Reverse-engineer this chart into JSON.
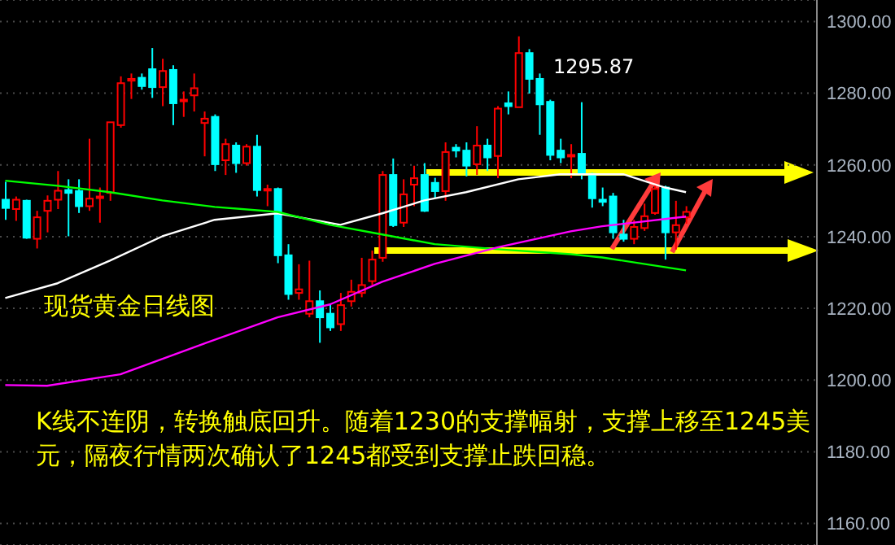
{
  "chart_data": {
    "type": "candlestick",
    "annotations": [
      "现货黄金日线图",
      "K线不连阴，转换触底回升。随着1230的支撑幅射，支撑上移至1245美元，隔夜行情两次确认了1245都受到支撑止跌回稳。",
      "1295.87"
    ],
    "categories": [
      null,
      null,
      null,
      null,
      null,
      null,
      null,
      null,
      null,
      null,
      null,
      null,
      null,
      null,
      null,
      null,
      null,
      null,
      null,
      null,
      null,
      null,
      null,
      null,
      null,
      null,
      null,
      null,
      null,
      null,
      null,
      null,
      null,
      null,
      null,
      null,
      null,
      null,
      null,
      null,
      null,
      null,
      null,
      null,
      null,
      null,
      null,
      null,
      null,
      null,
      null,
      null,
      null,
      null,
      null,
      null,
      null,
      null,
      null,
      null,
      null,
      null,
      null,
      null,
      null,
      null,
      null,
      null,
      null,
      null,
      null,
      null,
      null,
      null,
      null,
      null,
      null,
      null
    ],
    "ohlc": [
      [
        1250.3,
        1255.3,
        1244.7,
        1248.0
      ],
      [
        1247.7,
        1251.2,
        1244.4,
        1250.3
      ],
      [
        1250.0,
        1250.3,
        1239.4,
        1239.7
      ],
      [
        1239.4,
        1247.2,
        1236.7,
        1245.4
      ],
      [
        1247.2,
        1251.5,
        1241.2,
        1250.0
      ],
      [
        1250.3,
        1258.3,
        1247.7,
        1252.8
      ],
      [
        1253.0,
        1256.0,
        1240.1,
        1252.2
      ],
      [
        1252.7,
        1256.0,
        1246.6,
        1248.5
      ],
      [
        1248.5,
        1267.3,
        1247.2,
        1250.6
      ],
      [
        1251.1,
        1253.7,
        1243.9,
        1251.2
      ],
      [
        1252.2,
        1271.9,
        1250.0,
        1271.9
      ],
      [
        1271.1,
        1284.7,
        1270.4,
        1282.8
      ],
      [
        1283.5,
        1285.5,
        1278.4,
        1284.0
      ],
      [
        1284.3,
        1285.5,
        1281.0,
        1282.0
      ],
      [
        1286.7,
        1292.6,
        1278.7,
        1281.7
      ],
      [
        1281.7,
        1289.6,
        1276.4,
        1286.2
      ],
      [
        1286.5,
        1287.8,
        1271.1,
        1277.2
      ],
      [
        1277.8,
        1280.5,
        1273.4,
        1278.2
      ],
      [
        1279.4,
        1285.5,
        1274.9,
        1281.4
      ],
      [
        1271.7,
        1274.9,
        1262.4,
        1272.9
      ],
      [
        1273.4,
        1274.1,
        1258.3,
        1260.2
      ],
      [
        1261.3,
        1267.3,
        1257.2,
        1265.8
      ],
      [
        1265.4,
        1266.3,
        1257.8,
        1260.5
      ],
      [
        1260.5,
        1265.8,
        1259.8,
        1265.1
      ],
      [
        1265.1,
        1268.4,
        1251.2,
        1253.0
      ],
      [
        1253.0,
        1254.5,
        1248.5,
        1253.3
      ],
      [
        1253.3,
        1253.7,
        1232.6,
        1234.8
      ],
      [
        1234.8,
        1237.9,
        1222.4,
        1224.0
      ],
      [
        1224.3,
        1232.3,
        1222.4,
        1225.3
      ],
      [
        1218.5,
        1233.3,
        1217.5,
        1222.0
      ],
      [
        1222.0,
        1225.0,
        1210.4,
        1217.5
      ],
      [
        1218.5,
        1221.2,
        1213.7,
        1214.7
      ],
      [
        1215.6,
        1224.3,
        1213.7,
        1220.9
      ],
      [
        1222.0,
        1228.0,
        1220.5,
        1224.6
      ],
      [
        1224.3,
        1234.1,
        1223.1,
        1226.5
      ],
      [
        1227.6,
        1236.1,
        1226.5,
        1233.6
      ],
      [
        1234.1,
        1258.3,
        1233.0,
        1257.2
      ],
      [
        1257.2,
        1261.8,
        1242.7,
        1243.2
      ],
      [
        1243.9,
        1256.0,
        1242.7,
        1251.8
      ],
      [
        1254.5,
        1259.8,
        1248.5,
        1256.3
      ],
      [
        1257.2,
        1260.5,
        1246.9,
        1247.2
      ],
      [
        1255.0,
        1256.4,
        1250.7,
        1252.7
      ],
      [
        1252.7,
        1266.3,
        1250.0,
        1263.6
      ],
      [
        1264.8,
        1265.8,
        1262.1,
        1264.0
      ],
      [
        1264.0,
        1266.3,
        1256.8,
        1259.8
      ],
      [
        1260.2,
        1270.8,
        1257.2,
        1265.4
      ],
      [
        1265.4,
        1267.3,
        1258.3,
        1262.1
      ],
      [
        1262.5,
        1276.4,
        1256.3,
        1275.7
      ],
      [
        1277.2,
        1280.5,
        1274.1,
        1276.4
      ],
      [
        1276.1,
        1295.87,
        1276.1,
        1291.2
      ],
      [
        1291.2,
        1292.3,
        1279.9,
        1284.0
      ],
      [
        1284.0,
        1285.5,
        1268.4,
        1276.9
      ],
      [
        1277.6,
        1278.2,
        1261.3,
        1262.8
      ],
      [
        1264.0,
        1267.3,
        1260.5,
        1262.1
      ],
      [
        1262.4,
        1265.8,
        1256.3,
        1262.8
      ],
      [
        1263.1,
        1277.5,
        1256.0,
        1257.5
      ],
      [
        1257.5,
        1257.8,
        1248.1,
        1250.7
      ],
      [
        1250.3,
        1253.7,
        1248.5,
        1249.7
      ],
      [
        1251.2,
        1252.2,
        1239.4,
        1241.2
      ],
      [
        1240.6,
        1244.7,
        1238.6,
        1239.4
      ],
      [
        1239.4,
        1244.7,
        1237.9,
        1242.7
      ],
      [
        1242.4,
        1249.2,
        1241.6,
        1245.7
      ],
      [
        1246.6,
        1254.5,
        1246.1,
        1253.3
      ],
      [
        1253.7,
        1254.2,
        1233.6,
        1241.2
      ],
      [
        1241.2,
        1250.0,
        1236.4,
        1243.2
      ],
      [
        1245.4,
        1248.5,
        1243.6,
        1246.9
      ],
      null,
      null,
      null,
      null,
      null,
      null,
      null,
      null,
      null,
      null,
      null,
      null
    ],
    "colors": [
      "#00ffff",
      "#ff0000",
      "#00ffff",
      "#ff0000",
      "#ff0000",
      "#ff0000",
      "#00ffff",
      "#00ffff",
      "#ff0000",
      "#ff0000",
      "#ff0000",
      "#ff0000",
      "#ff0000",
      "#00ffff",
      "#00ffff",
      "#ff0000",
      "#00ffff",
      "#ff0000",
      "#ff0000",
      "#ff0000",
      "#00ffff",
      "#ff0000",
      "#00ffff",
      "#ff0000",
      "#00ffff",
      "#ff0000",
      "#00ffff",
      "#00ffff",
      "#ff0000",
      "#ff0000",
      "#00ffff",
      "#00ffff",
      "#ff0000",
      "#ff0000",
      "#ff0000",
      "#ff0000",
      "#ff0000",
      "#00ffff",
      "#ff0000",
      "#ff0000",
      "#00ffff",
      "#00ffff",
      "#ff0000",
      "#00ffff",
      "#00ffff",
      "#ff0000",
      "#00ffff",
      "#ff0000",
      "#00ffff",
      "#ff0000",
      "#00ffff",
      "#00ffff",
      "#00ffff",
      "#00ffff",
      "#ff0000",
      "#00ffff",
      "#00ffff",
      "#00ffff",
      "#00ffff",
      "#00ffff",
      "#ff0000",
      "#ff0000",
      "#ff0000",
      "#00ffff",
      "#ff0000",
      "#ff0000",
      null,
      null,
      null,
      null,
      null,
      null,
      null,
      null,
      null,
      null,
      null,
      null
    ],
    "series": [
      {
        "type": "line",
        "color": "#ffffff",
        "values": [
          1222.9,
          null,
          null,
          null,
          null,
          1227.0,
          null,
          null,
          null,
          null,
          1233.3,
          null,
          null,
          null,
          null,
          1240.1,
          null,
          null,
          null,
          null,
          1244.7,
          null,
          null,
          null,
          null,
          null,
          1246.5,
          null,
          null,
          null,
          null,
          null,
          1243.3,
          null,
          null,
          null,
          1246.5,
          null,
          null,
          null,
          1250.1,
          null,
          null,
          null,
          1252.4,
          null,
          null,
          null,
          null,
          1256.0,
          null,
          null,
          null,
          1257.4,
          null,
          null,
          null,
          null,
          null,
          1257.4,
          null,
          null,
          null,
          1253.7,
          null,
          1252.4,
          null,
          null,
          null,
          null,
          null,
          null,
          null,
          null,
          null,
          null,
          null,
          null
        ]
      },
      {
        "type": "line",
        "color": "#00ff00",
        "values": [
          1255.6,
          null,
          null,
          null,
          null,
          1254.2,
          null,
          null,
          null,
          null,
          1252.4,
          null,
          null,
          null,
          null,
          1250.1,
          null,
          null,
          null,
          null,
          1248.3,
          null,
          null,
          null,
          null,
          null,
          1246.9,
          null,
          null,
          null,
          null,
          1243.3,
          null,
          null,
          null,
          null,
          1240.6,
          null,
          null,
          null,
          null,
          1237.9,
          null,
          null,
          null,
          null,
          null,
          1236.5,
          null,
          null,
          null,
          null,
          null,
          null,
          1235.1,
          null,
          null,
          1234.2,
          null,
          null,
          null,
          null,
          null,
          null,
          null,
          1230.6,
          null,
          null,
          null,
          null,
          null,
          null,
          null,
          null,
          null,
          null,
          null,
          null
        ]
      },
      {
        "type": "line",
        "color": "#ff00ff",
        "values": [
          1198.6,
          null,
          null,
          null,
          1198.4,
          null,
          null,
          null,
          null,
          1200.7,
          null,
          1201.6,
          null,
          null,
          null,
          null,
          null,
          null,
          null,
          1210.2,
          null,
          null,
          null,
          null,
          null,
          null,
          1217.5,
          null,
          null,
          null,
          null,
          1221.1,
          null,
          null,
          null,
          null,
          1227.4,
          null,
          null,
          null,
          null,
          1232.4,
          null,
          null,
          null,
          null,
          null,
          1237.0,
          null,
          null,
          null,
          null,
          null,
          null,
          1241.5,
          null,
          null,
          1242.9,
          null,
          null,
          null,
          null,
          null,
          null,
          null,
          1245.6,
          null,
          null,
          null,
          null,
          null,
          null,
          null,
          null,
          null,
          null,
          null,
          null
        ]
      }
    ],
    "ylim": [
      1154,
      1306
    ],
    "yticks": [
      {
        "value": 1160,
        "label": "1160.00"
      },
      {
        "value": 1180,
        "label": "1180.00"
      },
      {
        "value": 1200,
        "label": "1200.00"
      },
      {
        "value": 1220,
        "label": "1220.00"
      },
      {
        "value": 1240,
        "label": "1240.00"
      },
      {
        "value": 1260,
        "label": "1260.00"
      },
      {
        "value": 1280,
        "label": "1280.00"
      },
      {
        "value": 1300,
        "label": "1300.00"
      }
    ],
    "grid": "y",
    "tick_labels": "y",
    "marker": "none",
    "line_style": "solid"
  }
}
